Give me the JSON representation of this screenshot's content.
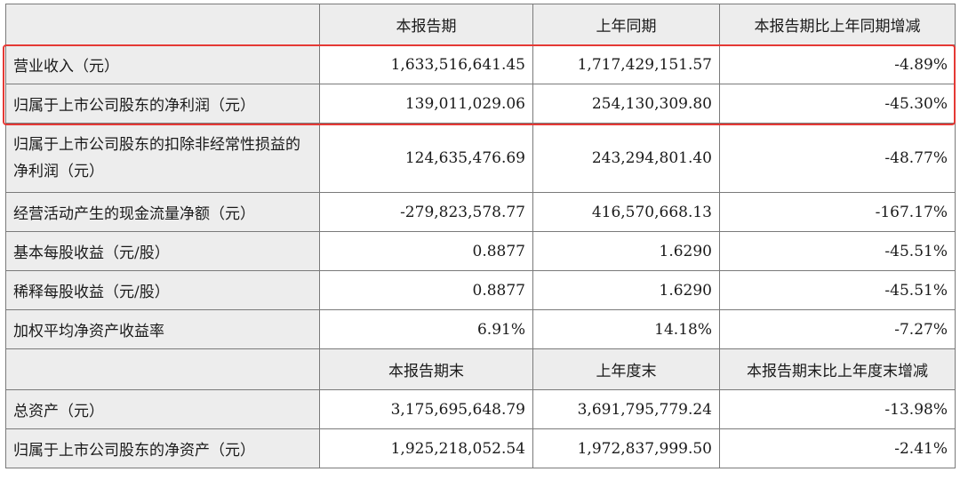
{
  "table": {
    "header": [
      "",
      "本报告期",
      "上年同期",
      "本报告期比上年同期增减"
    ],
    "rows": [
      [
        "营业收入（元）",
        "1,633,516,641.45",
        "1,717,429,151.57",
        "-4.89%"
      ],
      [
        "归属于上市公司股东的净利润（元）",
        "139,011,029.06",
        "254,130,309.80",
        "-45.30%"
      ],
      [
        "归属于上市公司股东的扣除非经常性损益的净利润（元）",
        "124,635,476.69",
        "243,294,801.40",
        "-48.77%"
      ],
      [
        "经营活动产生的现金流量净额（元）",
        "-279,823,578.77",
        "416,570,668.13",
        "-167.17%"
      ],
      [
        "基本每股收益（元/股）",
        "0.8877",
        "1.6290",
        "-45.51%"
      ],
      [
        "稀释每股收益（元/股）",
        "0.8877",
        "1.6290",
        "-45.51%"
      ],
      [
        "加权平均净资产收益率",
        "6.91%",
        "14.18%",
        "-7.27%"
      ]
    ],
    "header2": [
      "",
      "本报告期末",
      "上年度末",
      "本报告期末比上年度末增减"
    ],
    "rows2": [
      [
        "总资产（元）",
        "3,175,695,648.79",
        "3,691,795,779.24",
        "-13.98%"
      ],
      [
        "归属于上市公司股东的净资产（元）",
        "1,925,218,052.54",
        "1,972,837,999.50",
        "-2.41%"
      ]
    ]
  },
  "colors": {
    "highlight_border": "#e53935",
    "label_bg": "#ededed"
  }
}
